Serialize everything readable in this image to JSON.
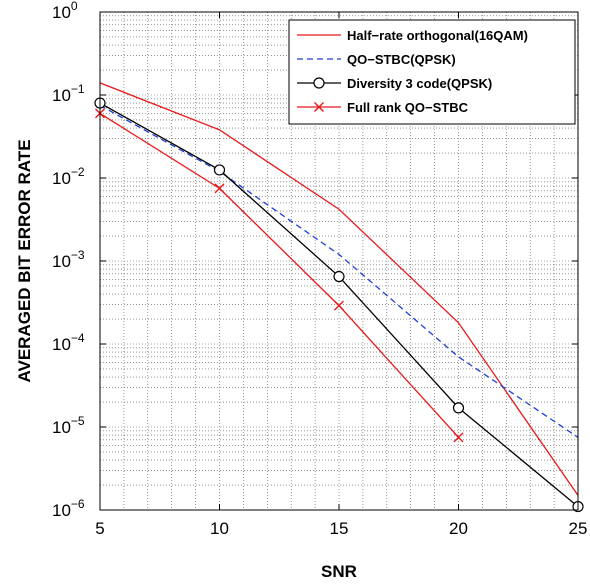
{
  "chart_data": {
    "type": "line",
    "xlabel": "SNR",
    "ylabel": "AVERAGED BIT ERROR RATE",
    "xlim": [
      5,
      25
    ],
    "ylim": [
      1e-06,
      1
    ],
    "yscale": "log",
    "grid": true,
    "legend_position": "top-right",
    "xticks": [
      "5",
      "10",
      "15",
      "20",
      "25"
    ],
    "yticks": [
      {
        "base": "10",
        "exp": "−6"
      },
      {
        "base": "10",
        "exp": "−5"
      },
      {
        "base": "10",
        "exp": "−4"
      },
      {
        "base": "10",
        "exp": "−3"
      },
      {
        "base": "10",
        "exp": "−2"
      },
      {
        "base": "10",
        "exp": "−1"
      },
      {
        "base": "10",
        "exp": "0"
      }
    ],
    "series": [
      {
        "name": "Half−rate orthogonal(16QAM)",
        "color": "#e8191c",
        "dash": "solid",
        "marker": "none",
        "x": [
          5,
          10,
          15,
          20,
          25
        ],
        "y": [
          0.14,
          0.038,
          0.0042,
          0.00018,
          1.5e-06
        ]
      },
      {
        "name": "QO−STBC(QPSK)",
        "color": "#1f3fd8",
        "dash": "dashed",
        "marker": "none",
        "x": [
          5,
          10,
          15,
          20,
          25
        ],
        "y": [
          0.075,
          0.012,
          0.0012,
          7e-05,
          7.5e-06
        ]
      },
      {
        "name": "Diversity 3 code(QPSK)",
        "color": "#000000",
        "dash": "solid",
        "marker": "circle",
        "x": [
          5,
          10,
          15,
          20,
          25
        ],
        "y": [
          0.08,
          0.0125,
          0.00065,
          1.7e-05,
          1.1e-06
        ]
      },
      {
        "name": "Full rank QO−STBC",
        "color": "#e8191c",
        "dash": "solid",
        "marker": "x",
        "x": [
          5,
          10,
          15,
          20
        ],
        "y": [
          0.06,
          0.0075,
          0.00029,
          7.5e-06
        ]
      }
    ]
  }
}
